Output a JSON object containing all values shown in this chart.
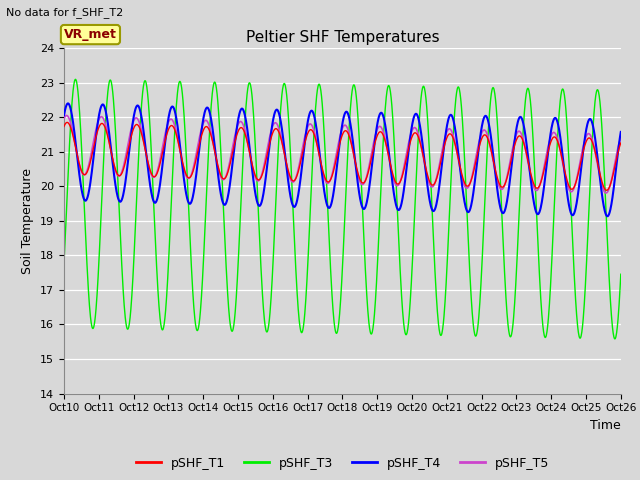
{
  "title": "Peltier SHF Temperatures",
  "subtitle": "No data for f_SHF_T2",
  "ylabel": "Soil Temperature",
  "xlabel": "Time",
  "ylim": [
    14.0,
    24.0
  ],
  "yticks": [
    14.0,
    15.0,
    16.0,
    17.0,
    18.0,
    19.0,
    20.0,
    21.0,
    22.0,
    23.0,
    24.0
  ],
  "xtick_labels": [
    "Oct 10",
    "Oct 11",
    "Oct 12",
    "Oct 13",
    "Oct 14",
    "Oct 15",
    "Oct 16",
    "Oct 17",
    "Oct 18",
    "Oct 19",
    "Oct 20",
    "Oct 21",
    "Oct 22",
    "Oct 23",
    "Oct 24",
    "Oct 25",
    "Oct 26"
  ],
  "colors": {
    "T1": "#ff0000",
    "T3": "#00ee00",
    "T4": "#0000ff",
    "T5": "#cc44cc"
  },
  "legend_labels": [
    "pSHF_T1",
    "pSHF_T3",
    "pSHF_T4",
    "pSHF_T5"
  ],
  "annotation": "VR_met",
  "bg_color": "#d8d8d8",
  "plot_bg": "#d8d8d8",
  "fig_width": 6.4,
  "fig_height": 4.8,
  "dpi": 100
}
